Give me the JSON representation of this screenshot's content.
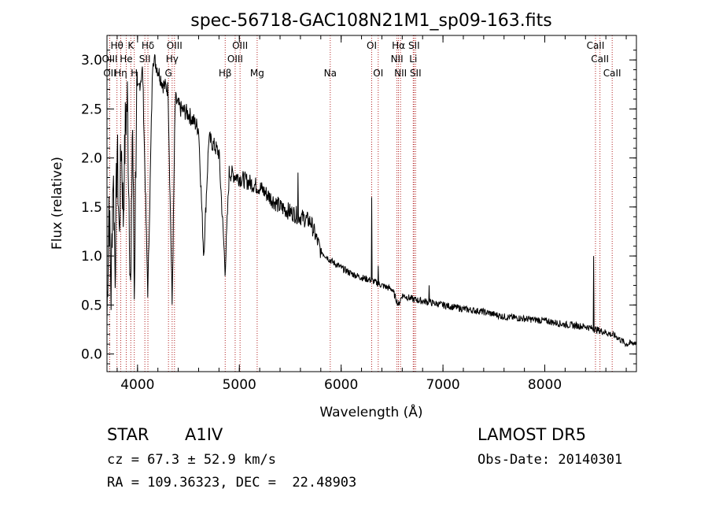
{
  "chart_data": {
    "type": "line",
    "title": "spec-56718-GAC108N21M1_sp09-163.fits",
    "xlabel": "Wavelength (Å)",
    "ylabel": "Flux (relative)",
    "xlim": [
      3700,
      8900
    ],
    "ylim": [
      -0.18,
      3.25
    ],
    "xticks": [
      4000,
      5000,
      6000,
      7000,
      8000
    ],
    "yticks": [
      0.0,
      0.5,
      1.0,
      1.5,
      2.0,
      2.5,
      3.0
    ],
    "xtick_labels": [
      "4000",
      "5000",
      "6000",
      "7000",
      "8000"
    ],
    "ytick_labels": [
      "0.0",
      "0.5",
      "1.0",
      "1.5",
      "2.0",
      "2.5",
      "3.0"
    ],
    "grid": false,
    "line_color": "#000000",
    "marker_color": "#b22222",
    "spectrum_anchors": [
      [
        3700,
        0.35
      ],
      [
        3720,
        1.6
      ],
      [
        3740,
        0.6
      ],
      [
        3760,
        1.9
      ],
      [
        3780,
        0.9
      ],
      [
        3800,
        2.1
      ],
      [
        3820,
        1.2
      ],
      [
        3840,
        2.2
      ],
      [
        3860,
        1.4
      ],
      [
        3880,
        2.3
      ],
      [
        3900,
        2.6
      ],
      [
        3934,
        0.5
      ],
      [
        3950,
        2.5
      ],
      [
        3968,
        0.6
      ],
      [
        3990,
        2.6
      ],
      [
        4050,
        2.9
      ],
      [
        4101,
        0.6
      ],
      [
        4150,
        3.05
      ],
      [
        4200,
        2.9
      ],
      [
        4250,
        2.75
      ],
      [
        4300,
        2.7
      ],
      [
        4340,
        0.5
      ],
      [
        4370,
        2.6
      ],
      [
        4420,
        2.5
      ],
      [
        4500,
        2.45
      ],
      [
        4600,
        2.3
      ],
      [
        4650,
        1.0
      ],
      [
        4700,
        2.2
      ],
      [
        4800,
        2.05
      ],
      [
        4861,
        0.85
      ],
      [
        4900,
        1.85
      ],
      [
        5000,
        1.8
      ],
      [
        5100,
        1.75
      ],
      [
        5200,
        1.7
      ],
      [
        5300,
        1.6
      ],
      [
        5400,
        1.5
      ],
      [
        5500,
        1.45
      ],
      [
        5600,
        1.4
      ],
      [
        5700,
        1.35
      ],
      [
        5800,
        1.05
      ],
      [
        5900,
        0.95
      ],
      [
        6000,
        0.88
      ],
      [
        6100,
        0.82
      ],
      [
        6200,
        0.78
      ],
      [
        6300,
        0.75
      ],
      [
        6400,
        0.7
      ],
      [
        6500,
        0.66
      ],
      [
        6563,
        0.5
      ],
      [
        6600,
        0.6
      ],
      [
        6700,
        0.56
      ],
      [
        6800,
        0.54
      ],
      [
        7000,
        0.5
      ],
      [
        7200,
        0.46
      ],
      [
        7400,
        0.43
      ],
      [
        7600,
        0.38
      ],
      [
        7800,
        0.36
      ],
      [
        8000,
        0.34
      ],
      [
        8200,
        0.3
      ],
      [
        8400,
        0.28
      ],
      [
        8600,
        0.22
      ],
      [
        8700,
        0.18
      ],
      [
        8800,
        0.1
      ],
      [
        8900,
        0.12
      ]
    ],
    "spectrum_spikes": [
      [
        5577,
        1.85
      ],
      [
        6300,
        1.6
      ],
      [
        6364,
        0.9
      ],
      [
        6863,
        0.7
      ],
      [
        8480,
        1.0
      ]
    ],
    "line_markers": [
      {
        "name": "Hθ",
        "wavelength": 3798,
        "row": 0
      },
      {
        "name": "K",
        "wavelength": 3934,
        "row": 0
      },
      {
        "name": "Hδ",
        "wavelength": 4102,
        "row": 0
      },
      {
        "name": "OIII",
        "wavelength": 4363,
        "row": 0
      },
      {
        "name": "OIII",
        "wavelength": 5007,
        "row": 0
      },
      {
        "name": "OI",
        "wavelength": 6300,
        "row": 0
      },
      {
        "name": "Hα",
        "wavelength": 6563,
        "row": 0
      },
      {
        "name": "SII",
        "wavelength": 6716,
        "row": 0
      },
      {
        "name": "CaII",
        "wavelength": 8498,
        "row": 0
      },
      {
        "name": "OIII",
        "wavelength": 3727,
        "row": 1
      },
      {
        "name": "He",
        "wavelength": 3889,
        "row": 1
      },
      {
        "name": "SII",
        "wavelength": 4072,
        "row": 1
      },
      {
        "name": "Hγ",
        "wavelength": 4340,
        "row": 1
      },
      {
        "name": "OIII",
        "wavelength": 4959,
        "row": 1
      },
      {
        "name": "NII",
        "wavelength": 6548,
        "row": 1
      },
      {
        "name": "Li",
        "wavelength": 6708,
        "row": 1
      },
      {
        "name": "CaII",
        "wavelength": 8542,
        "row": 1
      },
      {
        "name": "OII",
        "wavelength": 3727,
        "row": 2
      },
      {
        "name": "Hη",
        "wavelength": 3835,
        "row": 2
      },
      {
        "name": "H",
        "wavelength": 3968,
        "row": 2
      },
      {
        "name": "G",
        "wavelength": 4304,
        "row": 2
      },
      {
        "name": "Hβ",
        "wavelength": 4861,
        "row": 2
      },
      {
        "name": "Mg",
        "wavelength": 5175,
        "row": 2
      },
      {
        "name": "Na",
        "wavelength": 5893,
        "row": 2
      },
      {
        "name": "OI",
        "wavelength": 6364,
        "row": 2
      },
      {
        "name": "NII",
        "wavelength": 6583,
        "row": 2
      },
      {
        "name": "SII",
        "wavelength": 6731,
        "row": 2
      },
      {
        "name": "CaII",
        "wavelength": 8662,
        "row": 2
      }
    ]
  },
  "info": {
    "object_class": "STAR",
    "subclass": "A1IV",
    "survey": "LAMOST DR5",
    "redshift": "cz = 67.3 ± 52.9 km/s",
    "obs_date": "Obs-Date: 20140301",
    "coords": "RA = 109.36323, DEC =  22.48903"
  }
}
